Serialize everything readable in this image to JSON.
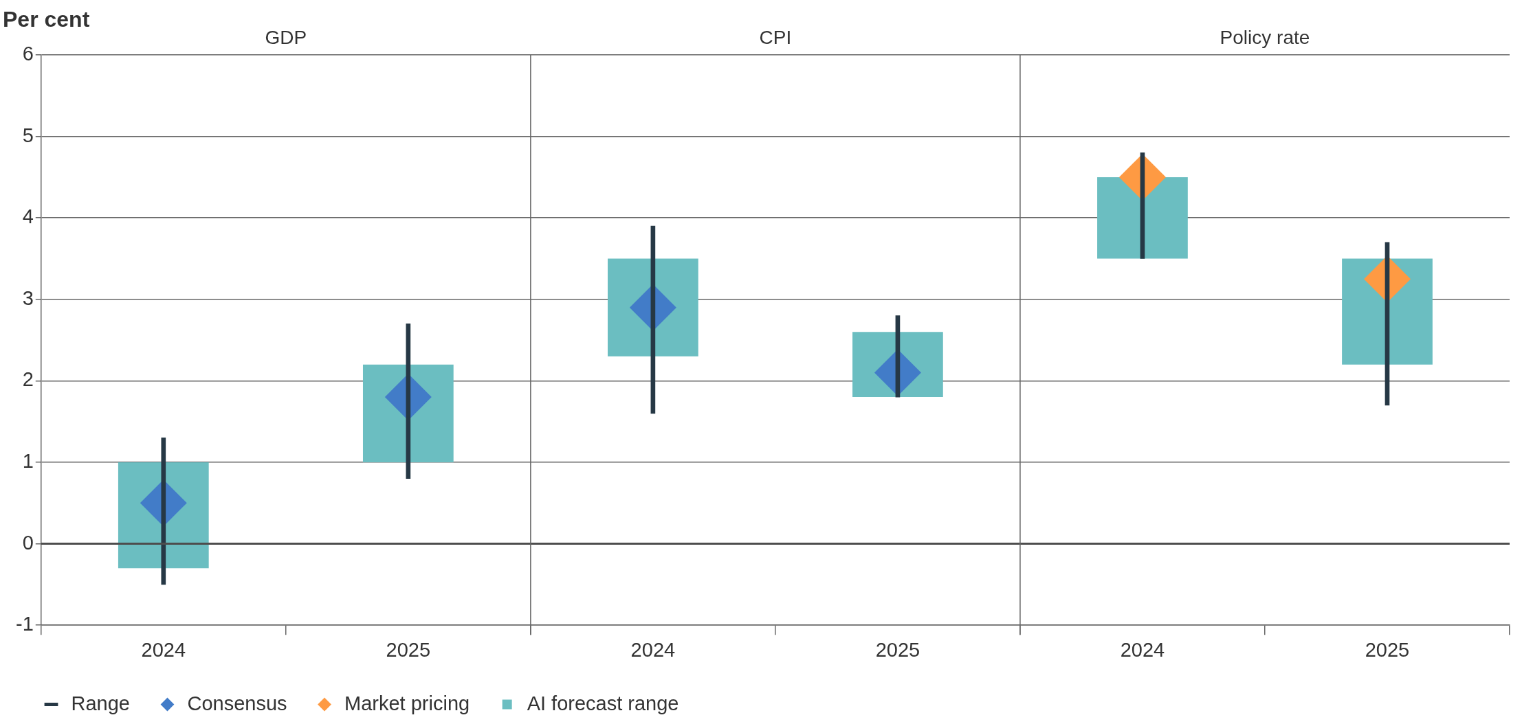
{
  "chart_data": {
    "type": "bar",
    "ylabel": "Per cent",
    "annotations": [
      "GDP",
      "CPI",
      "Policy rate"
    ],
    "categories": [
      "2024",
      "2025",
      "2024",
      "2025",
      "2024",
      "2025"
    ],
    "series": [
      {
        "name": "Range",
        "color": "#263845",
        "base": [
          -0.5,
          0.8,
          1.6,
          1.8,
          3.5,
          1.7
        ],
        "values": [
          1.8,
          1.9,
          2.3,
          1.0,
          1.3,
          2.0
        ]
      },
      {
        "name": "Consensus",
        "type": "scatter",
        "marker": "diamond",
        "color": "#427cc8",
        "values": [
          0.5,
          1.8,
          2.9,
          2.1,
          null,
          null
        ]
      },
      {
        "name": "Market pricing",
        "type": "scatter",
        "marker": "diamond",
        "color": "#fe9a43",
        "values": [
          null,
          null,
          null,
          null,
          4.5,
          3.25
        ]
      },
      {
        "name": "AI forecast range",
        "color": "#6bbec1",
        "base": [
          -0.3,
          1.0,
          2.3,
          1.8,
          3.5,
          2.2
        ],
        "values": [
          1.3,
          1.2,
          1.2,
          0.8,
          1.0,
          1.3
        ]
      }
    ],
    "ylim": [
      -1,
      6
    ],
    "yticks": [
      -1,
      0,
      1,
      2,
      3,
      4,
      5,
      6
    ],
    "grid": "y",
    "legend": "bottom",
    "ref_lines": [
      {
        "axis": "y",
        "value": 0,
        "color": "#4d4d4d"
      }
    ]
  }
}
